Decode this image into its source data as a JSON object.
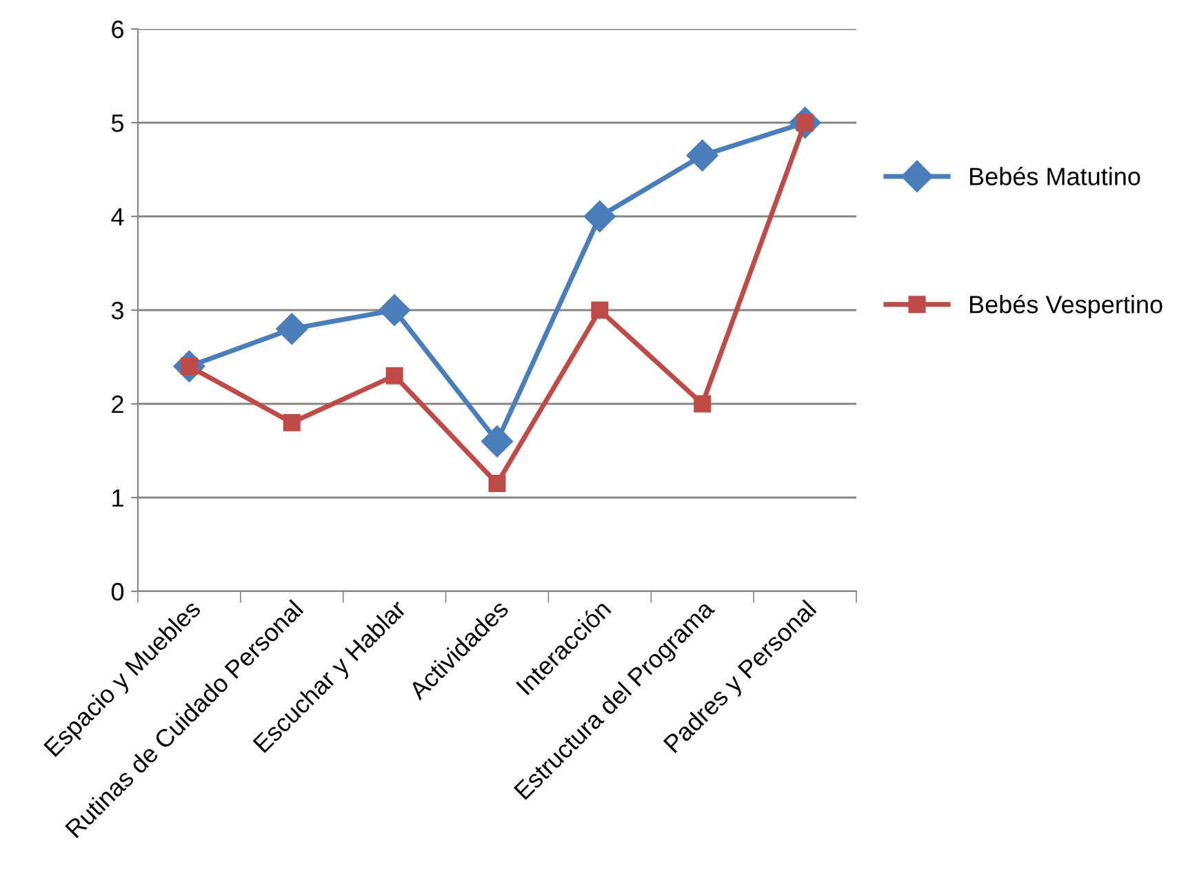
{
  "chart_data": {
    "type": "line",
    "categories": [
      "Espacio y Muebles",
      "Rutinas de Cuidado Personal",
      "Escuchar y Hablar",
      "Actividades",
      "Interacción",
      "Estructura del Programa",
      "Padres y Personal"
    ],
    "series": [
      {
        "name": "Bebés Matutino",
        "color": "#4a7ebb",
        "marker": "diamond",
        "values": [
          2.4,
          2.8,
          3.0,
          1.6,
          4.0,
          4.65,
          5.0
        ]
      },
      {
        "name": "Bebés Vespertino",
        "color": "#be4b48",
        "marker": "square",
        "values": [
          2.4,
          1.8,
          2.3,
          1.15,
          3.0,
          2.0,
          5.0
        ]
      }
    ],
    "ylim": [
      0,
      6
    ],
    "yticks": [
      0,
      1,
      2,
      3,
      4,
      5,
      6
    ],
    "grid": "y",
    "legend": "right",
    "line_style": "solid"
  }
}
